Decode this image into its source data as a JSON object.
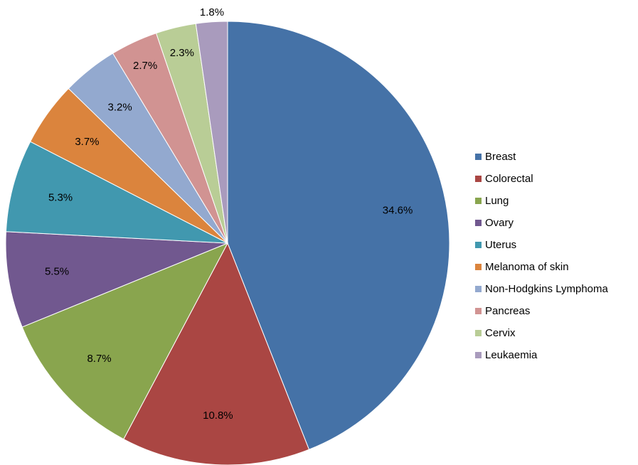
{
  "chart_data": {
    "type": "pie",
    "title": "",
    "legend_position": "right",
    "slices": [
      {
        "label": "Breast",
        "value": 34.6,
        "value_label": "34.6%",
        "color": "#4572A7"
      },
      {
        "label": "Colorectal",
        "value": 10.8,
        "value_label": "10.8%",
        "color": "#AA4643"
      },
      {
        "label": "Lung",
        "value": 8.7,
        "value_label": "8.7%",
        "color": "#89A54E"
      },
      {
        "label": "Ovary",
        "value": 5.5,
        "value_label": "5.5%",
        "color": "#71588F"
      },
      {
        "label": "Uterus",
        "value": 5.3,
        "value_label": "5.3%",
        "color": "#4198AF"
      },
      {
        "label": "Melanoma of skin",
        "value": 3.7,
        "value_label": "3.7%",
        "color": "#DB843D"
      },
      {
        "label": "Non-Hodgkins Lymphoma",
        "value": 3.2,
        "value_label": "3.2%",
        "color": "#93A9CF"
      },
      {
        "label": "Pancreas",
        "value": 2.7,
        "value_label": "2.7%",
        "color": "#D19392"
      },
      {
        "label": "Cervix",
        "value": 2.3,
        "value_label": "2.3%",
        "color": "#B9CD96"
      },
      {
        "label": "Leukaemia",
        "value": 1.8,
        "value_label": "1.8%",
        "color": "#A99BBD"
      }
    ]
  }
}
